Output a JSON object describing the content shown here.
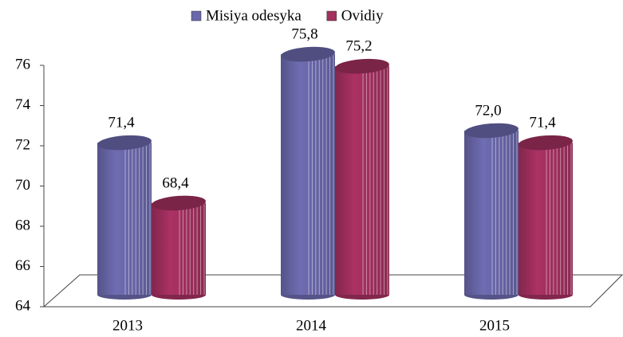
{
  "chart_data": {
    "type": "bar",
    "categories": [
      "2013",
      "2014",
      "2015"
    ],
    "series": [
      {
        "name": "Misiya odesyka",
        "color": "#6a68aa",
        "values": [
          71.4,
          75.8,
          72.0
        ],
        "value_labels": [
          "71,4",
          "75,8",
          "72,0"
        ]
      },
      {
        "name": "Ovidiy",
        "color": "#a3305f",
        "values": [
          68.4,
          75.2,
          71.4
        ],
        "value_labels": [
          "68,4",
          "75,2",
          "71,4"
        ]
      }
    ],
    "ylim": [
      64,
      76
    ],
    "yticks": [
      64,
      66,
      68,
      70,
      72,
      74,
      76
    ],
    "grid": false
  }
}
